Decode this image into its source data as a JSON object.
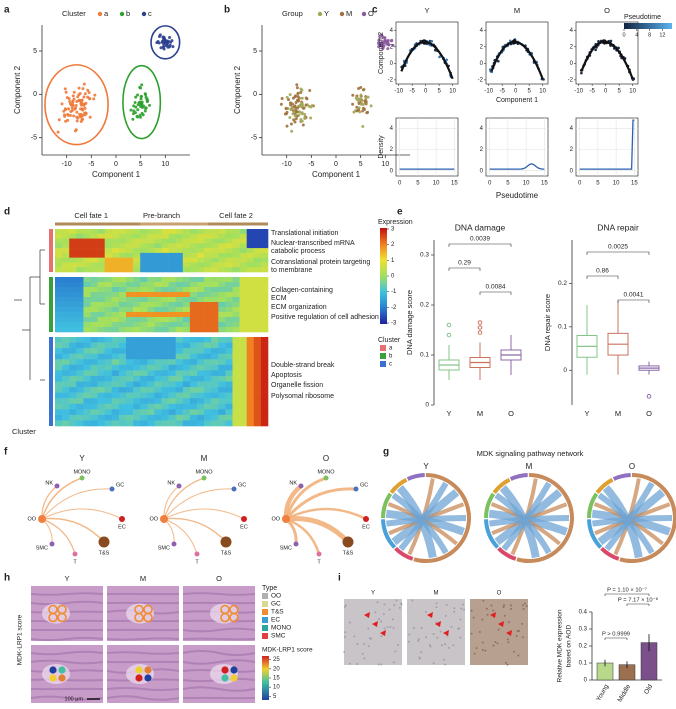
{
  "panels": {
    "a": {
      "letter": "a",
      "legend_title": "Cluster",
      "legend": [
        "a",
        "b",
        "c"
      ],
      "colors": [
        "#f07a3a",
        "#2ca02c",
        "#2b3f8f"
      ],
      "xlabel": "Component 1",
      "ylabel": "Component 2",
      "xlim": [
        -15,
        15
      ],
      "ylim": [
        -7,
        8
      ],
      "xticks": [
        -10,
        -5,
        0,
        5,
        10
      ],
      "yticks": [
        -5,
        0,
        5
      ]
    },
    "b": {
      "letter": "b",
      "legend_title": "Group",
      "legend": [
        "Y",
        "M",
        "O"
      ],
      "colors": [
        "#a3a656",
        "#a0703c",
        "#8a5aa0"
      ],
      "xlabel": "Component 1",
      "ylabel": "Component 2",
      "xlim": [
        -15,
        15
      ],
      "ylim": [
        -7,
        8
      ],
      "xticks": [
        -10,
        -5,
        0,
        5,
        10
      ],
      "yticks": [
        -5,
        0,
        5
      ]
    },
    "c": {
      "letter": "c",
      "groups": [
        "Y",
        "M",
        "O"
      ],
      "ylabel_top": "Component 2",
      "xlabel_top": "Component 1",
      "xlim_top": [
        -11,
        12
      ],
      "ylim_top": [
        -2.5,
        5
      ],
      "xticks_top": [
        -10,
        -5,
        0,
        5,
        10
      ],
      "yticks_top": [
        -2,
        0,
        2,
        4
      ],
      "colorbar_title": "Pseudotime",
      "colorbar_ticks": [
        0,
        4,
        8,
        12
      ],
      "ylabel_bottom": "Density",
      "xlabel_bottom": "Pseudotime",
      "xlim_bottom": [
        -1,
        16
      ],
      "ylim_bottom": [
        -0.5,
        5
      ],
      "xticks_bottom": [
        0,
        5,
        10,
        15
      ],
      "yticks_bottom": [
        0,
        2,
        4
      ]
    },
    "d": {
      "letter": "d",
      "headers": [
        "Cell fate 1",
        "Pre-branch",
        "Cell fate 2"
      ],
      "terms": [
        "Translational initiation",
        "Nuclear-transcribed mRNA",
        "catabolic process",
        "Cotranslational protein targeting",
        "to membrane",
        "Collagen-containing",
        "ECM",
        "ECM organization",
        "Positive regulation of cell adhesion",
        "Double-strand break",
        "Apoptosis",
        "Organelle fission",
        "Polysomal ribosome"
      ],
      "colorbar_title": "Expression",
      "colorbar_ticks": [
        3,
        2,
        1,
        0,
        -1,
        -2,
        -3
      ],
      "cluster_title": "Cluster",
      "cluster_legend": [
        "a",
        "b",
        "c"
      ],
      "row_label": "Cluster"
    },
    "e": {
      "letter": "e",
      "groups": [
        "Y",
        "M",
        "O"
      ],
      "colors": [
        "#86c48a",
        "#c8735e",
        "#8c6aa8"
      ],
      "plots": [
        {
          "title": "DNA damage",
          "ylabel": "DNA damage score",
          "ylim": [
            0,
            0.33
          ],
          "yticks": [
            0,
            0.1,
            0.2,
            0.3
          ],
          "pvalues": [
            "0.0039",
            "0.29",
            "0.0084"
          ],
          "boxes": [
            {
              "low": 0.05,
              "q1": 0.07,
              "median": 0.08,
              "q3": 0.09,
              "high": 0.12,
              "outliers": [
                0.16,
                0.14
              ]
            },
            {
              "low": 0.05,
              "q1": 0.075,
              "median": 0.085,
              "q3": 0.095,
              "high": 0.125,
              "outliers": [
                0.165,
                0.155,
                0.145
              ]
            },
            {
              "low": 0.06,
              "q1": 0.09,
              "median": 0.1,
              "q3": 0.11,
              "high": 0.14,
              "outliers": []
            }
          ]
        },
        {
          "title": "DNA repair",
          "ylabel": "DNA repair score",
          "ylim": [
            -0.08,
            0.3
          ],
          "yticks": [
            0,
            0.1,
            0.2
          ],
          "pvalues": [
            "0.0025",
            "0.86",
            "0.0041"
          ],
          "boxes": [
            {
              "low": -0.01,
              "q1": 0.03,
              "median": 0.055,
              "q3": 0.08,
              "high": 0.15,
              "outliers": []
            },
            {
              "low": -0.01,
              "q1": 0.035,
              "median": 0.06,
              "q3": 0.085,
              "high": 0.16,
              "outliers": []
            },
            {
              "low": -0.01,
              "q1": 0,
              "median": 0.005,
              "q3": 0.01,
              "high": 0.02,
              "outliers": [
                -0.06
              ]
            }
          ]
        }
      ]
    },
    "f": {
      "letter": "f",
      "groups": [
        "Y",
        "M",
        "O"
      ],
      "nodes": [
        "MONO",
        "NK",
        "GC",
        "OO",
        "EC",
        "SMC",
        "T",
        "T&S"
      ]
    },
    "g": {
      "letter": "g",
      "title": "MDK signaling pathway network",
      "groups": [
        "Y",
        "M",
        "O"
      ]
    },
    "h": {
      "letter": "h",
      "groups": [
        "Y",
        "M",
        "O"
      ],
      "ylabel": "MDK-LRP1 score",
      "type_title": "Type",
      "types": [
        "OO",
        "GC",
        "T&S",
        "EC",
        "MONO",
        "SMC"
      ],
      "type_colors": [
        "#b0b0b0",
        "#d8d890",
        "#f08c30",
        "#3a9fd0",
        "#2aa8a0",
        "#e04040"
      ],
      "score_title": "MDK-LRP1 score",
      "score_ticks": [
        25,
        20,
        15,
        10,
        5
      ],
      "scale": "100 μm"
    },
    "i": {
      "letter": "i",
      "groups": [
        "Y",
        "M",
        "O"
      ],
      "ylabel": [
        "Relative MDK expression",
        "based on AOD"
      ],
      "categories": [
        "Young",
        "Middle",
        "Old"
      ],
      "values": [
        0.1,
        0.09,
        0.22
      ],
      "errors": [
        0.02,
        0.02,
        0.05
      ],
      "colors": [
        "#b8d88a",
        "#9a7050",
        "#7b4f8a"
      ],
      "ylim": [
        0,
        0.4
      ],
      "yticks": [
        0,
        0.1,
        0.2,
        0.3,
        0.4
      ],
      "pvalues": [
        "P = 1.10 × 10⁻⁷",
        "P = 7.17 × 10⁻⁸",
        "P > 0.9999"
      ]
    }
  }
}
